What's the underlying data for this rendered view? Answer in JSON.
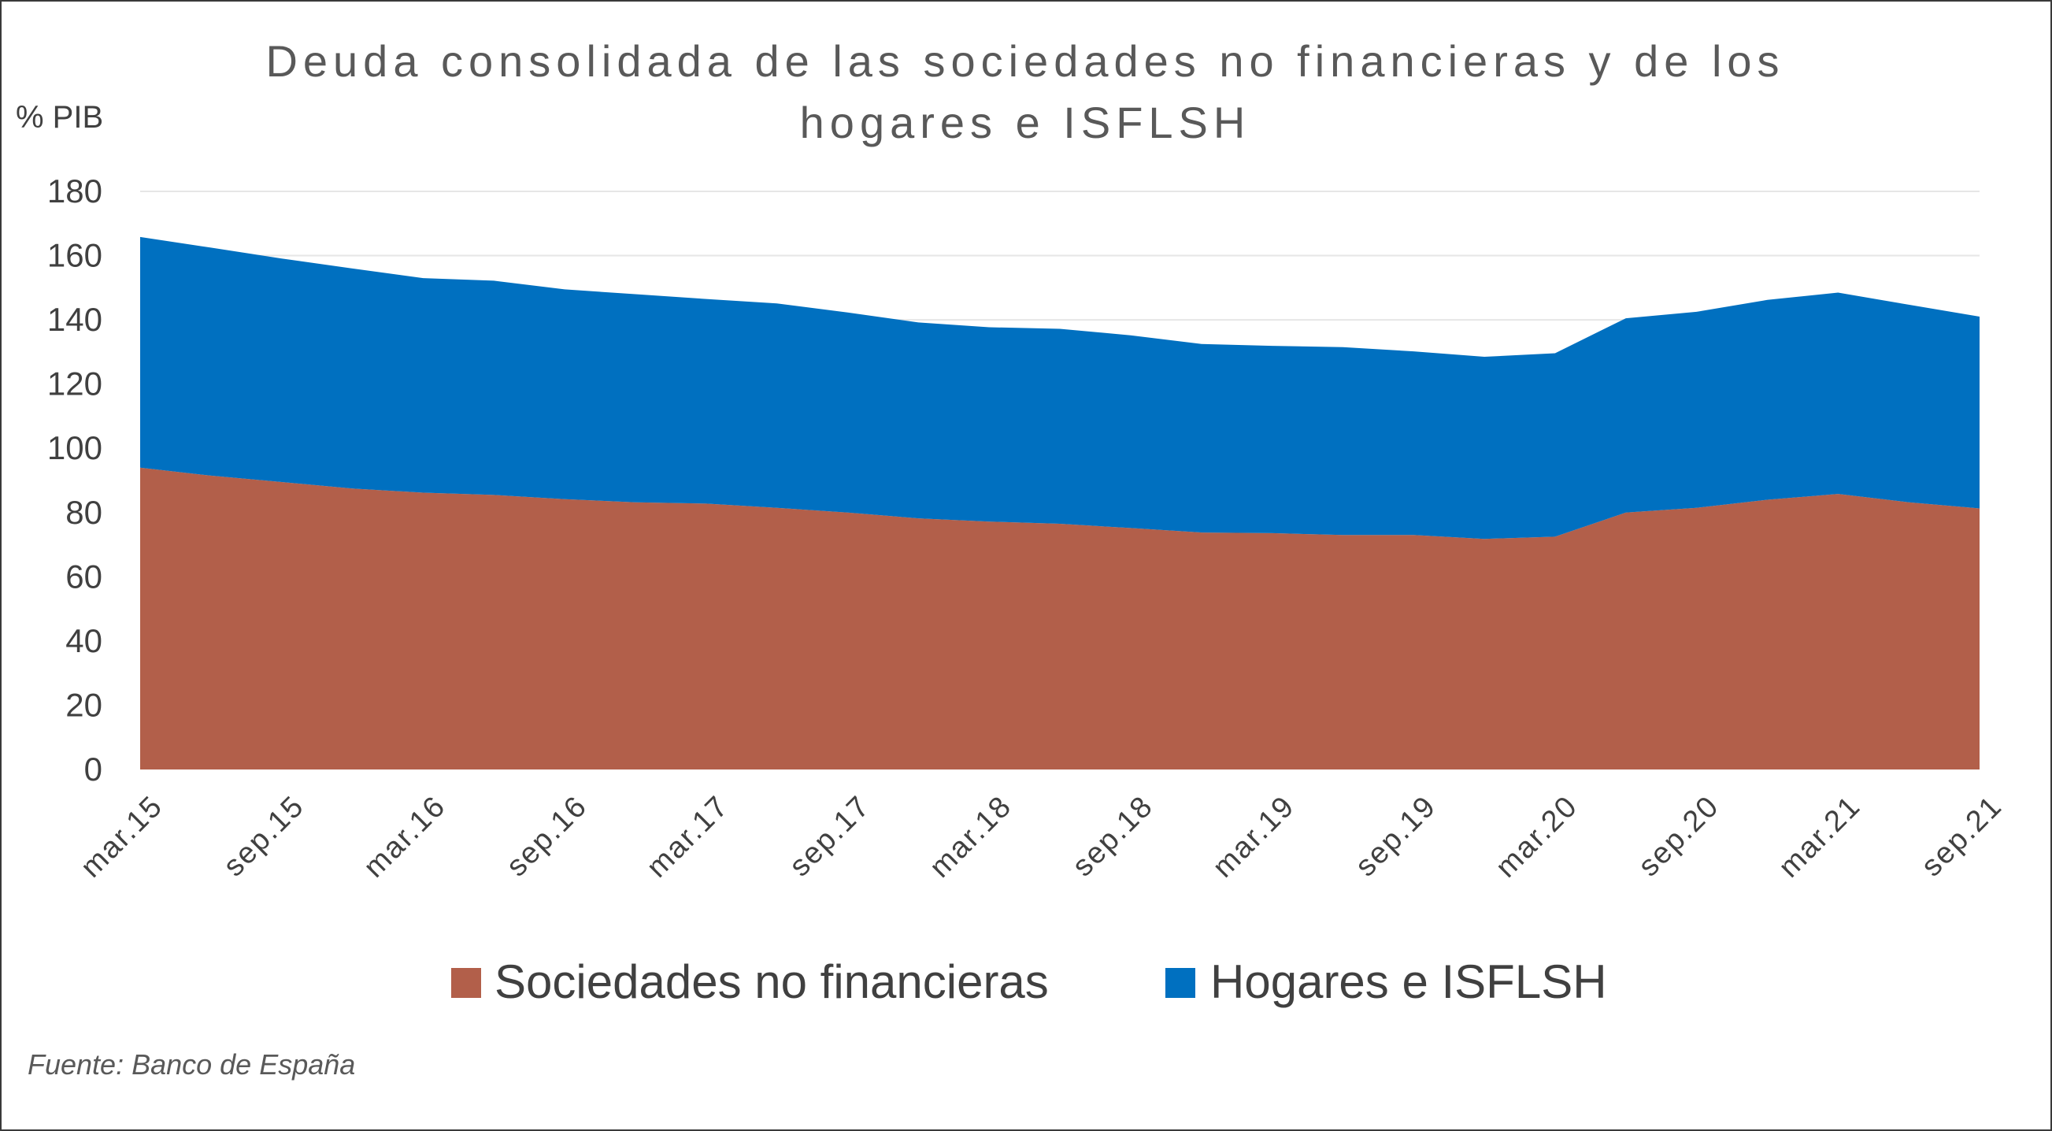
{
  "chart_data": {
    "type": "area",
    "stacked": true,
    "title": "Deuda consolidada de las sociedades no financieras y de los hogares e ISFLSH",
    "title_lines": [
      "Deuda consolidada de las sociedades no financieras y de los",
      "hogares e ISFLSH"
    ],
    "ylabel": "% PIB",
    "xlabel": "",
    "ylim": [
      0,
      180
    ],
    "yticks": [
      0,
      20,
      40,
      60,
      80,
      100,
      120,
      140,
      160,
      180
    ],
    "x": [
      "mar.15",
      "jun.15",
      "sep.15",
      "dic.15",
      "mar.16",
      "jun.16",
      "sep.16",
      "dic.16",
      "mar.17",
      "jun.17",
      "sep.17",
      "dic.17",
      "mar.18",
      "jun.18",
      "sep.18",
      "dic.18",
      "mar.19",
      "jun.19",
      "sep.19",
      "dic.19",
      "mar.20",
      "jun.20",
      "sep.20",
      "dic.20",
      "mar.21",
      "jun.21",
      "sep.21"
    ],
    "xtick_labels": [
      "mar.15",
      "sep.15",
      "mar.16",
      "sep.16",
      "mar.17",
      "sep.17",
      "mar.18",
      "sep.18",
      "mar.19",
      "sep.19",
      "mar.20",
      "sep.20",
      "mar.21",
      "sep.21"
    ],
    "series": [
      {
        "name": "Sociedades no financieras",
        "color": "#B25F4A",
        "values": [
          94,
          91.5,
          89.5,
          87.5,
          86.2,
          85.5,
          84.2,
          83.2,
          82.8,
          81.5,
          80,
          78.2,
          77.2,
          76.5,
          75.2,
          73.8,
          73.6,
          73,
          73,
          71.8,
          72.5,
          80,
          81.5,
          84,
          85.8,
          83.2,
          81.3
        ]
      },
      {
        "name": "Hogares e ISFLSH",
        "color": "#0070C0",
        "values": [
          71.8,
          71,
          69.6,
          68.5,
          66.8,
          66.7,
          65.3,
          64.8,
          63.7,
          63.6,
          62.3,
          61,
          60.5,
          60.7,
          60,
          58.7,
          58.3,
          58.5,
          57.2,
          56.7,
          57.1,
          60.5,
          61,
          62.2,
          62.7,
          61.5,
          59.7
        ]
      }
    ],
    "grid": true,
    "legend_position": "bottom"
  },
  "source_note": "Fuente: Banco de España"
}
